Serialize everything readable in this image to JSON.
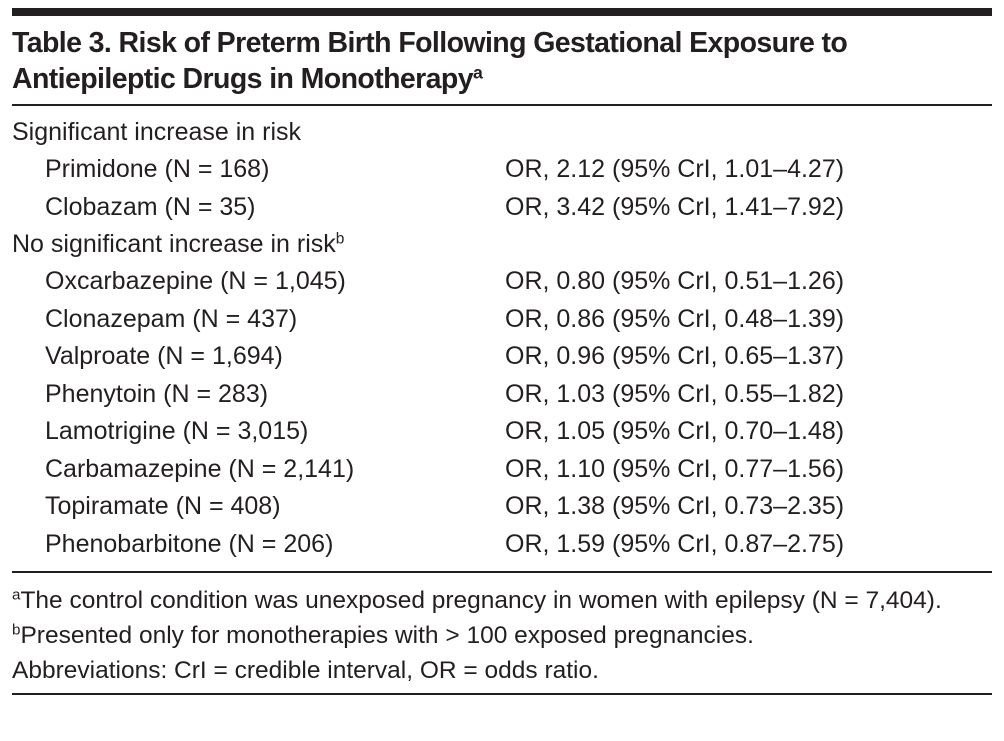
{
  "table": {
    "title": "Table 3. Risk of Preterm Birth Following Gestational Exposure to Antiepileptic Drugs in Monotherapy",
    "title_note": "a",
    "groups": [
      {
        "label": "Significant increase in risk",
        "rows": [
          {
            "drug": "Primidone (N = 168)",
            "result": "OR, 2.12 (95% CrI, 1.01–4.27)"
          },
          {
            "drug": "Clobazam (N = 35)",
            "result": "OR, 3.42 (95% CrI, 1.41–7.92)"
          }
        ]
      },
      {
        "label": "No significant increase in risk",
        "note": "b",
        "rows": [
          {
            "drug": "Oxcarbazepine (N = 1,045)",
            "result": "OR, 0.80 (95% CrI, 0.51–1.26)"
          },
          {
            "drug": "Clonazepam (N = 437)",
            "result": "OR, 0.86 (95% CrI, 0.48–1.39)"
          },
          {
            "drug": "Valproate (N = 1,694)",
            "result": "OR, 0.96 (95% CrI, 0.65–1.37)"
          },
          {
            "drug": "Phenytoin (N = 283)",
            "result": "OR, 1.03 (95% CrI, 0.55–1.82)"
          },
          {
            "drug": "Lamotrigine (N = 3,015)",
            "result": "OR, 1.05 (95% CrI, 0.70–1.48)"
          },
          {
            "drug": "Carbamazepine (N = 2,141)",
            "result": "OR, 1.10 (95% CrI, 0.77–1.56)"
          },
          {
            "drug": "Topiramate (N = 408)",
            "result": "OR, 1.38 (95% CrI, 0.73–2.35)"
          },
          {
            "drug": "Phenobarbitone (N = 206)",
            "result": "OR, 1.59 (95% CrI, 0.87–2.75)"
          }
        ]
      }
    ],
    "footnotes": [
      {
        "marker": "a",
        "text": "The control condition was unexposed pregnancy in women with epilepsy (N = 7,404)."
      },
      {
        "marker": "b",
        "text": "Presented only for monotherapies with > 100 exposed pregnancies."
      },
      {
        "text": "Abbreviations: CrI = credible interval, OR = odds ratio."
      }
    ]
  }
}
